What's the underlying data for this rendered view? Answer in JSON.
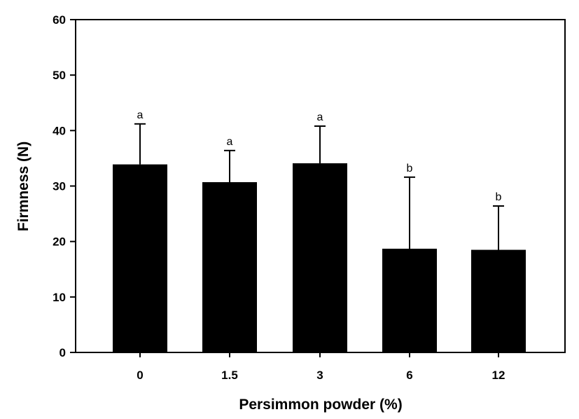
{
  "chart_data": {
    "type": "bar",
    "categories": [
      "0",
      "1.5",
      "3",
      "6",
      "12"
    ],
    "values": [
      33.9,
      30.7,
      34.1,
      18.7,
      18.5
    ],
    "error_upper": [
      41.2,
      36.4,
      40.8,
      31.6,
      26.4
    ],
    "significance_labels": [
      "a",
      "a",
      "a",
      "b",
      "b"
    ],
    "xlabel": "Persimmon powder (%)",
    "ylabel": "Firmness (N)",
    "ylim": [
      0,
      60
    ],
    "yticks": [
      "0",
      "10",
      "20",
      "30",
      "40",
      "50",
      "60"
    ],
    "grid": false,
    "bar_color": "#000000"
  }
}
